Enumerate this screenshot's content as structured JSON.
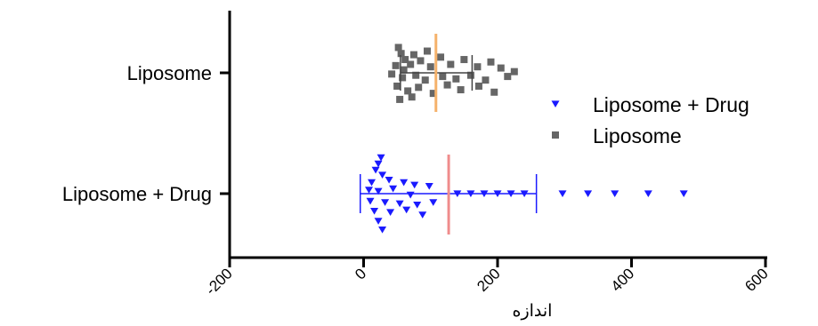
{
  "chart_data": {
    "type": "scatter",
    "title": "",
    "xlabel": "اندازه",
    "ylabel": "",
    "xlim": [
      -200,
      600
    ],
    "x_ticks": [
      "-200",
      "0",
      "200",
      "400",
      "600"
    ],
    "categories": [
      "Liposome",
      "Liposome + Drug"
    ],
    "legend": {
      "position": "right",
      "entries": [
        "Liposome + Drug",
        "Liposome"
      ]
    },
    "grid": false,
    "colors": {
      "Liposome + Drug": "#1a1aff",
      "Liposome": "#666666",
      "liposome_mean_line": "#f5b26b",
      "drug_mean_line": "#f08c8c"
    },
    "series": [
      {
        "name": "Liposome",
        "category": "Liposome",
        "marker": "square",
        "mean": 108,
        "error_low": 55,
        "error_high": 162,
        "points": [
          {
            "x": 52,
            "j": -0.42
          },
          {
            "x": 56,
            "j": -0.32
          },
          {
            "x": 62,
            "j": -0.22
          },
          {
            "x": 75,
            "j": -0.3
          },
          {
            "x": 95,
            "j": -0.36
          },
          {
            "x": 48,
            "j": -0.12
          },
          {
            "x": 60,
            "j": -0.05
          },
          {
            "x": 70,
            "j": -0.14
          },
          {
            "x": 85,
            "j": -0.2
          },
          {
            "x": 100,
            "j": -0.1
          },
          {
            "x": 115,
            "j": -0.26
          },
          {
            "x": 130,
            "j": -0.14
          },
          {
            "x": 150,
            "j": -0.22
          },
          {
            "x": 170,
            "j": -0.1
          },
          {
            "x": 190,
            "j": -0.18
          },
          {
            "x": 205,
            "j": -0.08
          },
          {
            "x": 225,
            "j": -0.02
          },
          {
            "x": 42,
            "j": 0.02
          },
          {
            "x": 58,
            "j": 0.08
          },
          {
            "x": 78,
            "j": 0.04
          },
          {
            "x": 92,
            "j": 0.12
          },
          {
            "x": 118,
            "j": 0.06
          },
          {
            "x": 138,
            "j": 0.1
          },
          {
            "x": 160,
            "j": 0.04
          },
          {
            "x": 182,
            "j": 0.12
          },
          {
            "x": 215,
            "j": 0.06
          },
          {
            "x": 50,
            "j": 0.22
          },
          {
            "x": 66,
            "j": 0.3
          },
          {
            "x": 82,
            "j": 0.24
          },
          {
            "x": 104,
            "j": 0.34
          },
          {
            "x": 125,
            "j": 0.2
          },
          {
            "x": 145,
            "j": 0.28
          },
          {
            "x": 172,
            "j": 0.22
          },
          {
            "x": 195,
            "j": 0.32
          },
          {
            "x": 54,
            "j": 0.44
          },
          {
            "x": 72,
            "j": 0.4
          }
        ]
      },
      {
        "name": "Liposome + Drug",
        "category": "Liposome + Drug",
        "marker": "triangle-down",
        "mean": 127,
        "error_low": -5,
        "error_high": 258,
        "points": [
          {
            "x": 26,
            "j": -0.58
          },
          {
            "x": 22,
            "j": -0.48
          },
          {
            "x": 18,
            "j": -0.38
          },
          {
            "x": 28,
            "j": -0.3
          },
          {
            "x": 12,
            "j": -0.18
          },
          {
            "x": 38,
            "j": -0.22
          },
          {
            "x": 60,
            "j": -0.18
          },
          {
            "x": 76,
            "j": -0.14
          },
          {
            "x": 8,
            "j": -0.06
          },
          {
            "x": 22,
            "j": -0.04
          },
          {
            "x": 44,
            "j": -0.08
          },
          {
            "x": 98,
            "j": -0.12
          },
          {
            "x": 70,
            "j": 0.02
          },
          {
            "x": 140,
            "j": 0.0
          },
          {
            "x": 160,
            "j": 0.0
          },
          {
            "x": 180,
            "j": 0.0
          },
          {
            "x": 200,
            "j": 0.0
          },
          {
            "x": 220,
            "j": 0.0
          },
          {
            "x": 240,
            "j": 0.0
          },
          {
            "x": 297,
            "j": 0.0
          },
          {
            "x": 335,
            "j": 0.0
          },
          {
            "x": 375,
            "j": 0.0
          },
          {
            "x": 425,
            "j": 0.0
          },
          {
            "x": 478,
            "j": 0.0
          },
          {
            "x": 10,
            "j": 0.12
          },
          {
            "x": 32,
            "j": 0.14
          },
          {
            "x": 54,
            "j": 0.16
          },
          {
            "x": 80,
            "j": 0.18
          },
          {
            "x": 104,
            "j": 0.14
          },
          {
            "x": 16,
            "j": 0.28
          },
          {
            "x": 40,
            "j": 0.3
          },
          {
            "x": 64,
            "j": 0.26
          },
          {
            "x": 88,
            "j": 0.34
          },
          {
            "x": 22,
            "j": 0.44
          },
          {
            "x": 28,
            "j": 0.58
          }
        ]
      }
    ]
  }
}
